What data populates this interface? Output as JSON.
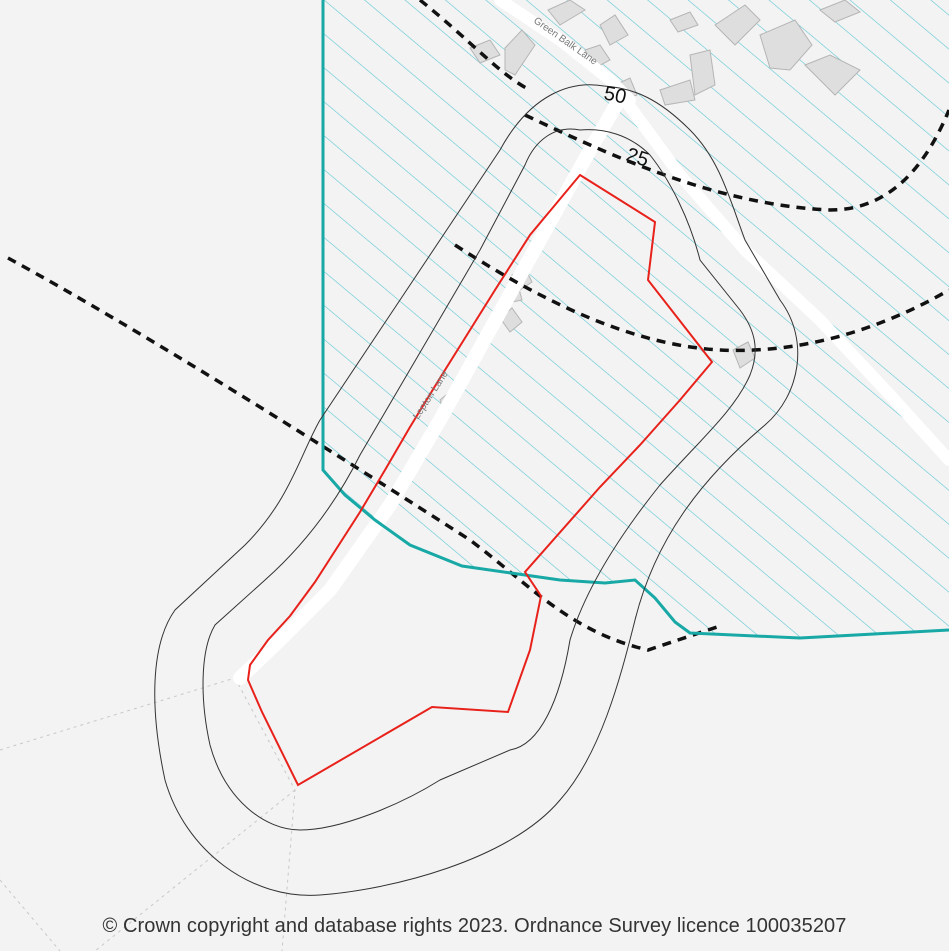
{
  "map": {
    "road_labels": {
      "green_balk_lane": "Green Balk Lane",
      "lepton_lane": "Lepton Lane"
    },
    "buffer_labels": {
      "outer": "50",
      "inner": "25"
    },
    "copyright": "© Crown copyright and database rights 2023. Ordnance Survey licence 100035207"
  },
  "colors": {
    "background": "#f3f3f3",
    "site_boundary": "#e8211b",
    "designation_boundary": "#18a9a6",
    "hatch": "#5ec7d3",
    "buffer_line": "#333333",
    "dashed_contour": "#111111",
    "road": "#ffffff",
    "building": "#dcdcdc"
  }
}
